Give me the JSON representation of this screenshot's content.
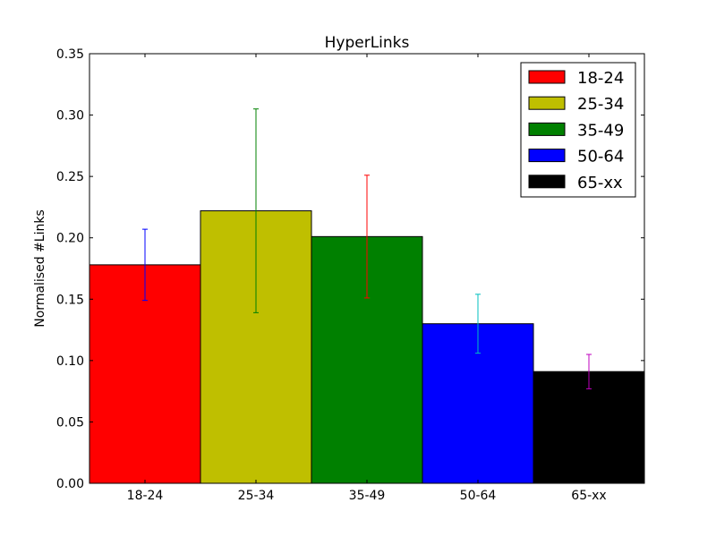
{
  "chart_data": {
    "type": "bar",
    "title": "HyperLinks",
    "xlabel": "",
    "ylabel": "Normalised #Links",
    "ylim": [
      0,
      0.35
    ],
    "yticks": [
      "0.00",
      "0.05",
      "0.10",
      "0.15",
      "0.20",
      "0.25",
      "0.30",
      "0.35"
    ],
    "ytick_values": [
      0,
      0.05,
      0.1,
      0.15,
      0.2,
      0.25,
      0.3,
      0.35
    ],
    "categories": [
      "18-24",
      "25-34",
      "35-49",
      "50-64",
      "65-xx"
    ],
    "values": [
      0.178,
      0.222,
      0.201,
      0.13,
      0.091
    ],
    "errors": [
      0.029,
      0.083,
      0.05,
      0.024,
      0.014
    ],
    "bar_colors": [
      "#ff0000",
      "#bfbf00",
      "#008000",
      "#0000ff",
      "#000000"
    ],
    "error_colors": [
      "#0000ff",
      "#008000",
      "#ff0000",
      "#00bfbf",
      "#bf00bf"
    ],
    "legend": {
      "position": "top-right",
      "entries": [
        "18-24",
        "25-34",
        "35-49",
        "50-64",
        "65-xx"
      ]
    },
    "grid": false
  }
}
